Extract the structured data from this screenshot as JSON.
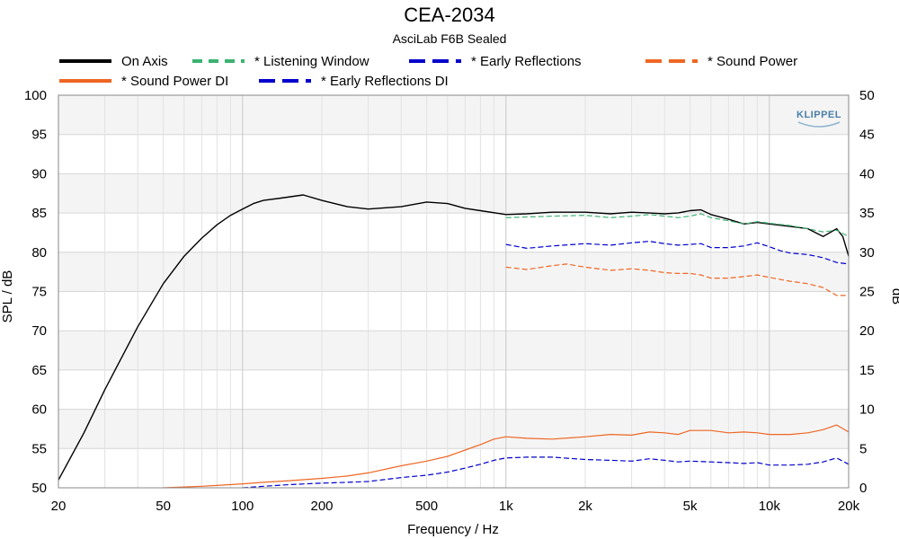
{
  "chart_data": {
    "type": "line",
    "title": "CEA-2034",
    "subtitle": "AsciLab F6B Sealed",
    "xlabel": "Frequency / Hz",
    "ylabel": "SPL / dB",
    "y2label": "dB",
    "xscale": "log",
    "xlim": [
      20,
      20000
    ],
    "ylim": [
      50,
      100
    ],
    "y2lim": [
      0,
      50
    ],
    "grid": true,
    "legend_position": "top",
    "watermark": "KLIPPEL",
    "xticks": [
      {
        "value": 20,
        "label": "20"
      },
      {
        "value": 50,
        "label": "50"
      },
      {
        "value": 100,
        "label": "100"
      },
      {
        "value": 200,
        "label": "200"
      },
      {
        "value": 500,
        "label": "500"
      },
      {
        "value": 1000,
        "label": "1k"
      },
      {
        "value": 2000,
        "label": "2k"
      },
      {
        "value": 5000,
        "label": "5k"
      },
      {
        "value": 10000,
        "label": "10k"
      },
      {
        "value": 20000,
        "label": "20k"
      }
    ],
    "yticks": [
      50,
      55,
      60,
      65,
      70,
      75,
      80,
      85,
      90,
      95,
      100
    ],
    "y2ticks": [
      0,
      5,
      10,
      15,
      20,
      25,
      30,
      35,
      40,
      45,
      50
    ],
    "series": [
      {
        "name": "On Axis",
        "axis": "left",
        "color": "#000000",
        "dash": "solid",
        "x": [
          20,
          25,
          30,
          40,
          50,
          60,
          70,
          80,
          90,
          100,
          110,
          120,
          140,
          170,
          200,
          250,
          300,
          400,
          500,
          600,
          700,
          800,
          1000,
          1200,
          1500,
          2000,
          2500,
          3000,
          3500,
          4000,
          4500,
          5000,
          5500,
          6000,
          7000,
          8000,
          9000,
          10000,
          12000,
          14000,
          16000,
          18000,
          19000,
          20000
        ],
        "y": [
          51.0,
          57.0,
          62.5,
          70.5,
          76.0,
          79.5,
          81.8,
          83.5,
          84.7,
          85.5,
          86.2,
          86.6,
          86.9,
          87.3,
          86.6,
          85.8,
          85.5,
          85.8,
          86.4,
          86.2,
          85.6,
          85.3,
          84.8,
          84.9,
          85.1,
          85.1,
          84.9,
          85.1,
          85.0,
          84.9,
          85.0,
          85.3,
          85.4,
          84.8,
          84.2,
          83.6,
          83.8,
          83.6,
          83.3,
          83.0,
          82.0,
          83.0,
          82.0,
          79.5
        ]
      },
      {
        "name": "* Listening Window",
        "axis": "left",
        "color": "#3cb371",
        "dash": "6,3",
        "x": [
          1000,
          1500,
          2000,
          2500,
          3000,
          3500,
          4000,
          4500,
          5000,
          5500,
          6000,
          7000,
          8000,
          9000,
          10000,
          12000,
          14000,
          16000,
          18000,
          20000
        ],
        "y": [
          84.4,
          84.6,
          84.7,
          84.4,
          84.6,
          84.8,
          84.6,
          84.4,
          84.6,
          84.9,
          84.4,
          84.0,
          83.6,
          83.9,
          83.7,
          83.4,
          83.0,
          82.6,
          82.8,
          82.0
        ]
      },
      {
        "name": "* Early Reflections",
        "axis": "left",
        "color": "#0000cc",
        "dash": "6,3",
        "x": [
          1000,
          1200,
          1500,
          2000,
          2500,
          3000,
          3500,
          4000,
          4500,
          5000,
          5500,
          6000,
          7000,
          8000,
          9000,
          10000,
          11000,
          12000,
          14000,
          16000,
          18000,
          20000
        ],
        "y": [
          81.0,
          80.5,
          80.8,
          81.1,
          80.9,
          81.2,
          81.4,
          81.1,
          80.9,
          81.0,
          81.1,
          80.6,
          80.6,
          80.8,
          81.2,
          80.7,
          80.2,
          79.9,
          79.7,
          79.3,
          78.7,
          78.5
        ]
      },
      {
        "name": "* Sound Power",
        "axis": "left",
        "color": "#ee6622",
        "dash": "6,3",
        "x": [
          1000,
          1200,
          1500,
          1700,
          2000,
          2500,
          3000,
          3500,
          4000,
          4500,
          5000,
          5500,
          6000,
          7000,
          8000,
          9000,
          10000,
          12000,
          14000,
          16000,
          18000,
          20000
        ],
        "y": [
          78.1,
          77.8,
          78.3,
          78.5,
          78.1,
          77.7,
          77.9,
          77.7,
          77.4,
          77.3,
          77.3,
          77.1,
          76.7,
          76.7,
          76.9,
          77.1,
          76.8,
          76.3,
          76.0,
          75.5,
          74.5,
          74.5
        ]
      },
      {
        "name": "* Sound Power DI",
        "axis": "right",
        "color": "#ee6622",
        "dash": "solid",
        "x": [
          50,
          60,
          70,
          80,
          100,
          120,
          150,
          200,
          250,
          300,
          400,
          500,
          600,
          700,
          800,
          900,
          1000,
          1200,
          1500,
          2000,
          2500,
          3000,
          3500,
          4000,
          4500,
          5000,
          5500,
          6000,
          7000,
          8000,
          9000,
          10000,
          12000,
          14000,
          16000,
          18000,
          20000
        ],
        "y": [
          0.0,
          0.1,
          0.2,
          0.3,
          0.5,
          0.7,
          0.9,
          1.2,
          1.5,
          1.9,
          2.8,
          3.4,
          4.0,
          4.8,
          5.5,
          6.2,
          6.5,
          6.3,
          6.2,
          6.5,
          6.8,
          6.7,
          7.1,
          7.0,
          6.8,
          7.3,
          7.3,
          7.3,
          7.0,
          7.1,
          7.0,
          6.8,
          6.8,
          7.0,
          7.4,
          8.0,
          7.1
        ]
      },
      {
        "name": "* Early Reflections DI",
        "axis": "right",
        "color": "#0000cc",
        "dash": "6,3",
        "x": [
          100,
          120,
          150,
          200,
          250,
          300,
          400,
          500,
          600,
          700,
          800,
          900,
          1000,
          1200,
          1500,
          2000,
          2500,
          3000,
          3500,
          4000,
          4500,
          5000,
          6000,
          7000,
          8000,
          9000,
          10000,
          12000,
          14000,
          16000,
          18000,
          20000
        ],
        "y": [
          0.0,
          0.2,
          0.4,
          0.6,
          0.7,
          0.8,
          1.3,
          1.6,
          2.0,
          2.5,
          3.0,
          3.5,
          3.8,
          3.9,
          3.9,
          3.6,
          3.5,
          3.4,
          3.7,
          3.5,
          3.3,
          3.4,
          3.3,
          3.2,
          3.1,
          3.2,
          2.9,
          2.9,
          3.0,
          3.3,
          3.8,
          3.0
        ]
      }
    ]
  }
}
